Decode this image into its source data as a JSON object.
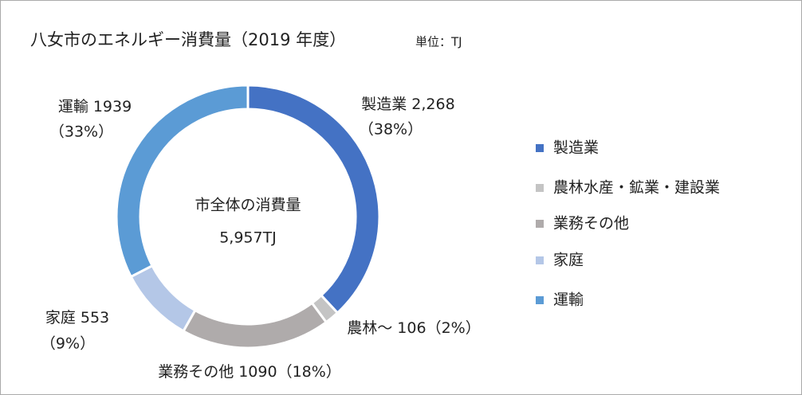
{
  "chart_data": {
    "type": "donut",
    "title": "八女市のエネルギー消費量（2019 年度）",
    "subtitle": "単位：TJ",
    "center_text": [
      "市全体の消費量",
      "5,957TJ"
    ],
    "categories": [
      "製造業",
      "農林水産・鉱業・建設業",
      "業務その他",
      "家庭",
      "運輸"
    ],
    "label_names": [
      "製造業",
      "農林～",
      "業務その他",
      "家庭",
      "運輸"
    ],
    "values": [
      2268,
      106,
      1090,
      553,
      1939
    ],
    "value_labels": [
      "2,268",
      "106",
      "1090",
      "553",
      "1939"
    ],
    "percent_values": [
      38,
      2,
      18,
      9,
      33
    ],
    "percent_labels": [
      "（38%）",
      "（2%）",
      "（18%）",
      "（9%）",
      "（33%）"
    ],
    "colors": [
      "#4472c4",
      "#c4c4c4",
      "#afabab",
      "#b4c7e7",
      "#5b9bd5"
    ],
    "legend": "right"
  }
}
